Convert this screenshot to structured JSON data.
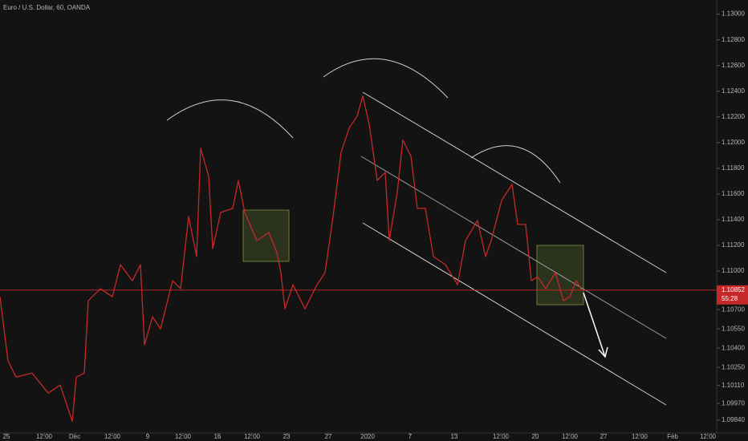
{
  "chart_data": {
    "type": "line",
    "title": "Euro / U.S. Dollar, 60, OANDA",
    "x": [
      0,
      10,
      20,
      40,
      60,
      75,
      90,
      95,
      105,
      110,
      125,
      140,
      150,
      165,
      175,
      180,
      190,
      200,
      215,
      225,
      235,
      245,
      250,
      260,
      265,
      275,
      290,
      297,
      305,
      320,
      335,
      345,
      350,
      355,
      365,
      380,
      395,
      405,
      415,
      425,
      435,
      445,
      452,
      460,
      470,
      480,
      485,
      495,
      502,
      512,
      520,
      530,
      540,
      555,
      570,
      580,
      595,
      605,
      612,
      625,
      638,
      645,
      655,
      662,
      670,
      680,
      692,
      702,
      710,
      718,
      725
    ],
    "values": [
      1.108,
      1.103,
      1.10175,
      1.10206,
      1.1005,
      1.10113,
      1.09831,
      1.10175,
      1.10206,
      1.10769,
      1.10863,
      1.108,
      1.1105,
      1.10925,
      1.1105,
      1.10425,
      1.10644,
      1.1055,
      1.10925,
      1.10863,
      1.11425,
      1.11113,
      1.11956,
      1.11738,
      1.11175,
      1.11456,
      1.11488,
      1.11706,
      1.11456,
      1.11238,
      1.113,
      1.11144,
      1.10988,
      1.10706,
      1.10894,
      1.10706,
      1.10894,
      1.10988,
      1.11425,
      1.11925,
      1.12113,
      1.12206,
      1.12363,
      1.12144,
      1.11706,
      1.11769,
      1.11238,
      1.11613,
      1.12019,
      1.11894,
      1.11488,
      1.11488,
      1.11113,
      1.1105,
      1.10894,
      1.11238,
      1.11394,
      1.11113,
      1.11238,
      1.1155,
      1.11675,
      1.11363,
      1.11363,
      1.10925,
      1.10956,
      1.10863,
      1.10988,
      1.10769,
      1.108,
      1.10925,
      1.1085
    ],
    "color": "#c62828",
    "xlim": [
      0,
      893
    ],
    "xticks": [
      {
        "value": 8,
        "label": "25"
      },
      {
        "value": 55,
        "label": "12:00"
      },
      {
        "value": 93,
        "label": "Dec"
      },
      {
        "value": 140,
        "label": "12:00"
      },
      {
        "value": 184,
        "label": "9"
      },
      {
        "value": 228,
        "label": "12:00"
      },
      {
        "value": 271,
        "label": "16"
      },
      {
        "value": 314,
        "label": "12:00"
      },
      {
        "value": 357,
        "label": "23"
      },
      {
        "value": 409,
        "label": "27"
      },
      {
        "value": 458,
        "label": "2020"
      },
      {
        "value": 511,
        "label": "7"
      },
      {
        "value": 566,
        "label": "13"
      },
      {
        "value": 624,
        "label": "12:00"
      },
      {
        "value": 667,
        "label": "20"
      },
      {
        "value": 710,
        "label": "12:00"
      },
      {
        "value": 752,
        "label": "27"
      },
      {
        "value": 797,
        "label": "12:00"
      },
      {
        "value": 838,
        "label": "Feb"
      },
      {
        "value": 882,
        "label": "12:00"
      }
    ],
    "ylim": [
      1.0974,
      1.1311
    ],
    "yticks": [
      {
        "value": 1.13,
        "label": "1.13000"
      },
      {
        "value": 1.128,
        "label": "1.12800"
      },
      {
        "value": 1.126,
        "label": "1.12600"
      },
      {
        "value": 1.124,
        "label": "1.12400"
      },
      {
        "value": 1.122,
        "label": "1.12200"
      },
      {
        "value": 1.12,
        "label": "1.12000"
      },
      {
        "value": 1.118,
        "label": "1.11800"
      },
      {
        "value": 1.116,
        "label": "1.11600"
      },
      {
        "value": 1.114,
        "label": "1.11400"
      },
      {
        "value": 1.112,
        "label": "1.11200"
      },
      {
        "value": 1.11,
        "label": "1.11000"
      },
      {
        "value": 1.107,
        "label": "1.10700"
      },
      {
        "value": 1.1055,
        "label": "1.10550"
      },
      {
        "value": 1.104,
        "label": "1.10400"
      },
      {
        "value": 1.1025,
        "label": "1.10250"
      },
      {
        "value": 1.1011,
        "label": "1.10110"
      },
      {
        "value": 1.0997,
        "label": "1.09970"
      },
      {
        "value": 1.0984,
        "label": "1.09840"
      }
    ],
    "current_price": {
      "value": 1.10852,
      "label": "1.10852"
    },
    "countdown": "55:28"
  }
}
